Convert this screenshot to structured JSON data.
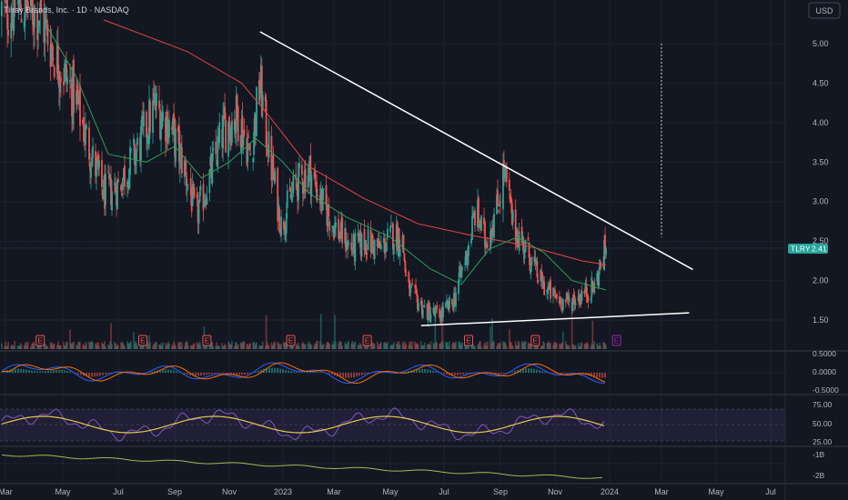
{
  "header": {
    "symbol_title": "Tilray Brands, Inc. · 1D · NASDAQ",
    "currency": "USD"
  },
  "colors": {
    "background": "#131722",
    "grid": "#1e222d",
    "up": "#26a69a",
    "down": "#ef5350",
    "sma_long": "#e0453f",
    "sma_short": "#2e9e57",
    "trendline": "#ffffff",
    "price_tag": "#26a69a",
    "rsi_line": "#7e57c2",
    "rsi_ma": "#e6c84a",
    "macd": "#2962ff",
    "macd_signal": "#ff6d00",
    "earnings_badge": "#ef5350",
    "dividend_badge": "#9c27b0"
  },
  "price_tag": {
    "symbol": "TLRY",
    "value": "2.41"
  },
  "chart_data": [
    {
      "type": "candlestick",
      "x_axis": {
        "labels": [
          "Mar",
          "May",
          "Jul",
          "Sep",
          "Nov",
          "2023",
          "Mar",
          "May",
          "Jul",
          "Sep",
          "Nov",
          "2024",
          "Mar",
          "May",
          "Jul"
        ]
      },
      "y_axis": {
        "scale": "linear",
        "ticks": [
          "5.00",
          "4.50",
          "4.00",
          "3.50",
          "3.00",
          "2.50",
          "2.00",
          "1.50"
        ],
        "ylim": [
          1.42,
          5.35
        ]
      },
      "anchors": [
        {
          "date": "2022-02-25",
          "price": 5.4
        },
        {
          "date": "2022-03-15",
          "price": 5.5
        },
        {
          "date": "2022-04-05",
          "price": 5.4
        },
        {
          "date": "2022-04-25",
          "price": 4.8
        },
        {
          "date": "2022-05-15",
          "price": 4.3
        },
        {
          "date": "2022-06-01",
          "price": 3.6
        },
        {
          "date": "2022-06-15",
          "price": 3.1
        },
        {
          "date": "2022-07-01",
          "price": 3.2
        },
        {
          "date": "2022-07-20",
          "price": 3.6
        },
        {
          "date": "2022-08-10",
          "price": 4.2
        },
        {
          "date": "2022-08-25",
          "price": 4.0
        },
        {
          "date": "2022-09-10",
          "price": 3.5
        },
        {
          "date": "2022-09-25",
          "price": 2.8
        },
        {
          "date": "2022-10-10",
          "price": 3.3
        },
        {
          "date": "2022-10-25",
          "price": 3.9
        },
        {
          "date": "2022-11-10",
          "price": 4.1
        },
        {
          "date": "2022-11-25",
          "price": 3.6
        },
        {
          "date": "2022-12-06",
          "price": 4.5
        },
        {
          "date": "2022-12-15",
          "price": 3.7
        },
        {
          "date": "2022-12-30",
          "price": 2.7
        },
        {
          "date": "2023-01-15",
          "price": 3.2
        },
        {
          "date": "2023-02-01",
          "price": 3.4
        },
        {
          "date": "2023-02-15",
          "price": 3.0
        },
        {
          "date": "2023-03-01",
          "price": 2.7
        },
        {
          "date": "2023-03-20",
          "price": 2.4
        },
        {
          "date": "2023-04-05",
          "price": 2.5
        },
        {
          "date": "2023-04-20",
          "price": 2.4
        },
        {
          "date": "2023-05-05",
          "price": 2.6
        },
        {
          "date": "2023-05-15",
          "price": 2.5
        },
        {
          "date": "2023-05-20",
          "price": 1.9
        },
        {
          "date": "2023-06-10",
          "price": 1.62
        },
        {
          "date": "2023-06-25",
          "price": 1.55
        },
        {
          "date": "2023-07-10",
          "price": 1.7
        },
        {
          "date": "2023-07-25",
          "price": 2.3
        },
        {
          "date": "2023-08-05",
          "price": 2.9
        },
        {
          "date": "2023-08-15",
          "price": 2.5
        },
        {
          "date": "2023-08-28",
          "price": 2.9
        },
        {
          "date": "2023-09-05",
          "price": 3.4
        },
        {
          "date": "2023-09-15",
          "price": 2.7
        },
        {
          "date": "2023-09-30",
          "price": 2.4
        },
        {
          "date": "2023-10-15",
          "price": 2.0
        },
        {
          "date": "2023-10-30",
          "price": 1.8
        },
        {
          "date": "2023-11-15",
          "price": 1.72
        },
        {
          "date": "2023-11-30",
          "price": 1.82
        },
        {
          "date": "2023-12-15",
          "price": 1.92
        },
        {
          "date": "2023-12-28",
          "price": 2.41
        }
      ],
      "last_price": 2.41,
      "overlays": [
        {
          "name": "SMA 200",
          "points": [
            {
              "date": "2022-06-15",
              "price": 5.3
            },
            {
              "date": "2022-09-15",
              "price": 4.9
            },
            {
              "date": "2022-11-15",
              "price": 4.5
            },
            {
              "date": "2022-12-15",
              "price": 4.1
            },
            {
              "date": "2023-01-30",
              "price": 3.45
            },
            {
              "date": "2023-04-01",
              "price": 3.05
            },
            {
              "date": "2023-06-01",
              "price": 2.72
            },
            {
              "date": "2023-08-01",
              "price": 2.57
            },
            {
              "date": "2023-10-01",
              "price": 2.44
            },
            {
              "date": "2023-12-01",
              "price": 2.25
            },
            {
              "date": "2023-12-28",
              "price": 2.2
            }
          ]
        },
        {
          "name": "SMA 50",
          "points": [
            {
              "date": "2022-04-15",
              "price": 5.2
            },
            {
              "date": "2022-05-15",
              "price": 4.6
            },
            {
              "date": "2022-06-20",
              "price": 3.6
            },
            {
              "date": "2022-08-01",
              "price": 3.5
            },
            {
              "date": "2022-09-01",
              "price": 3.7
            },
            {
              "date": "2022-10-01",
              "price": 3.3
            },
            {
              "date": "2022-11-01",
              "price": 3.5
            },
            {
              "date": "2022-12-01",
              "price": 3.8
            },
            {
              "date": "2023-01-01",
              "price": 3.5
            },
            {
              "date": "2023-02-01",
              "price": 3.1
            },
            {
              "date": "2023-03-15",
              "price": 2.8
            },
            {
              "date": "2023-05-01",
              "price": 2.55
            },
            {
              "date": "2023-06-15",
              "price": 2.15
            },
            {
              "date": "2023-07-20",
              "price": 1.95
            },
            {
              "date": "2023-08-20",
              "price": 2.4
            },
            {
              "date": "2023-09-20",
              "price": 2.55
            },
            {
              "date": "2023-10-20",
              "price": 2.35
            },
            {
              "date": "2023-11-20",
              "price": 2.0
            },
            {
              "date": "2023-12-28",
              "price": 1.88
            }
          ]
        }
      ],
      "trendlines": [
        {
          "from": {
            "date": "2022-12-06",
            "price": 5.15
          },
          "to": {
            "date": "2024-04-05",
            "price": 2.14
          }
        },
        {
          "from": {
            "date": "2023-06-05",
            "price": 1.43
          },
          "to": {
            "date": "2024-04-01",
            "price": 1.59
          }
        }
      ],
      "measure_line": {
        "date": "2024-03-01",
        "from_price": 5.0,
        "to_price": 2.55
      },
      "event_badges": [
        {
          "date": "2022-04-07",
          "label": "E"
        },
        {
          "date": "2022-07-28",
          "label": "E"
        },
        {
          "date": "2022-10-07",
          "label": "E"
        },
        {
          "date": "2023-01-10",
          "label": "E"
        },
        {
          "date": "2023-04-06",
          "label": "E"
        },
        {
          "date": "2023-07-28",
          "label": "E"
        },
        {
          "date": "2023-10-10",
          "label": "E"
        },
        {
          "date": "2024-01-09",
          "label": "E"
        }
      ]
    },
    {
      "type": "line",
      "name": "MACD",
      "y_axis": {
        "ticks": [
          "0.5000",
          "0.0000",
          "-0.5000"
        ]
      }
    },
    {
      "type": "line",
      "name": "RSI",
      "y_axis": {
        "ticks": [
          "75.00",
          "50.00",
          "25.00"
        ],
        "ylim": [
          20,
          80
        ]
      }
    },
    {
      "type": "line",
      "name": "Volume indicator",
      "y_axis": {
        "ticks": [
          "-1B",
          "-2B"
        ]
      }
    }
  ]
}
